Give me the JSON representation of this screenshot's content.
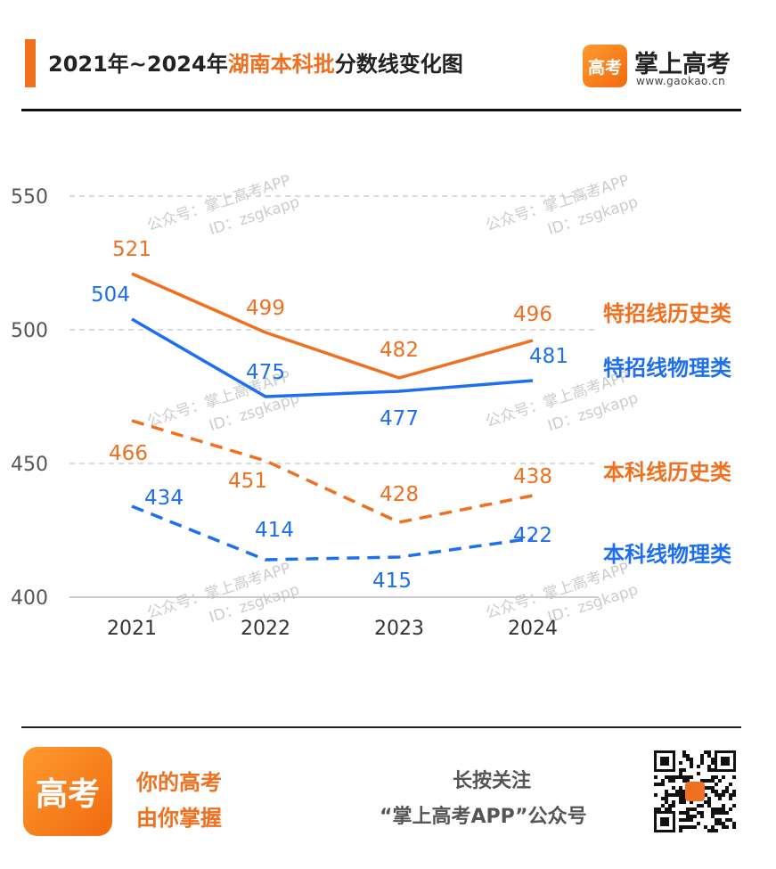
{
  "header": {
    "title_prefix": "2021年~2024年",
    "title_highlight": "湖南本科批",
    "title_suffix": "分数线变化图",
    "brand_logo_text": "高考",
    "brand_name": "掌上高考",
    "brand_url": "www.gaokao.cn"
  },
  "watermark": {
    "line1": "公众号：掌上高考APP",
    "line2": "ID：zsgkapp"
  },
  "chart_data": {
    "type": "line",
    "title": "2021年~2024年湖南本科批分数线变化图",
    "categories": [
      "2021",
      "2022",
      "2023",
      "2024"
    ],
    "ylim": [
      400,
      550
    ],
    "yticks": [
      400,
      450,
      500,
      550
    ],
    "grid": true,
    "legend_placement": "right",
    "series": [
      {
        "name": "特招线历史类",
        "values": [
          521,
          499,
          482,
          496
        ],
        "color": "#f07020",
        "dashed": false
      },
      {
        "name": "特招线物理类",
        "values": [
          504,
          475,
          477,
          481
        ],
        "color": "#1e6ff0",
        "dashed": false
      },
      {
        "name": "本科线历史类",
        "values": [
          466,
          451,
          428,
          438
        ],
        "color": "#f07020",
        "dashed": true
      },
      {
        "name": "本科线物理类",
        "values": [
          434,
          414,
          415,
          422
        ],
        "color": "#1e6ff0",
        "dashed": true
      }
    ]
  },
  "footer": {
    "logo_text": "高考",
    "slogan1": "你的高考",
    "slogan2": "由你掌握",
    "follow1": "长按关注",
    "follow2": "“掌上高考APP”公众号",
    "qr_icon": "qr-code-icon"
  }
}
